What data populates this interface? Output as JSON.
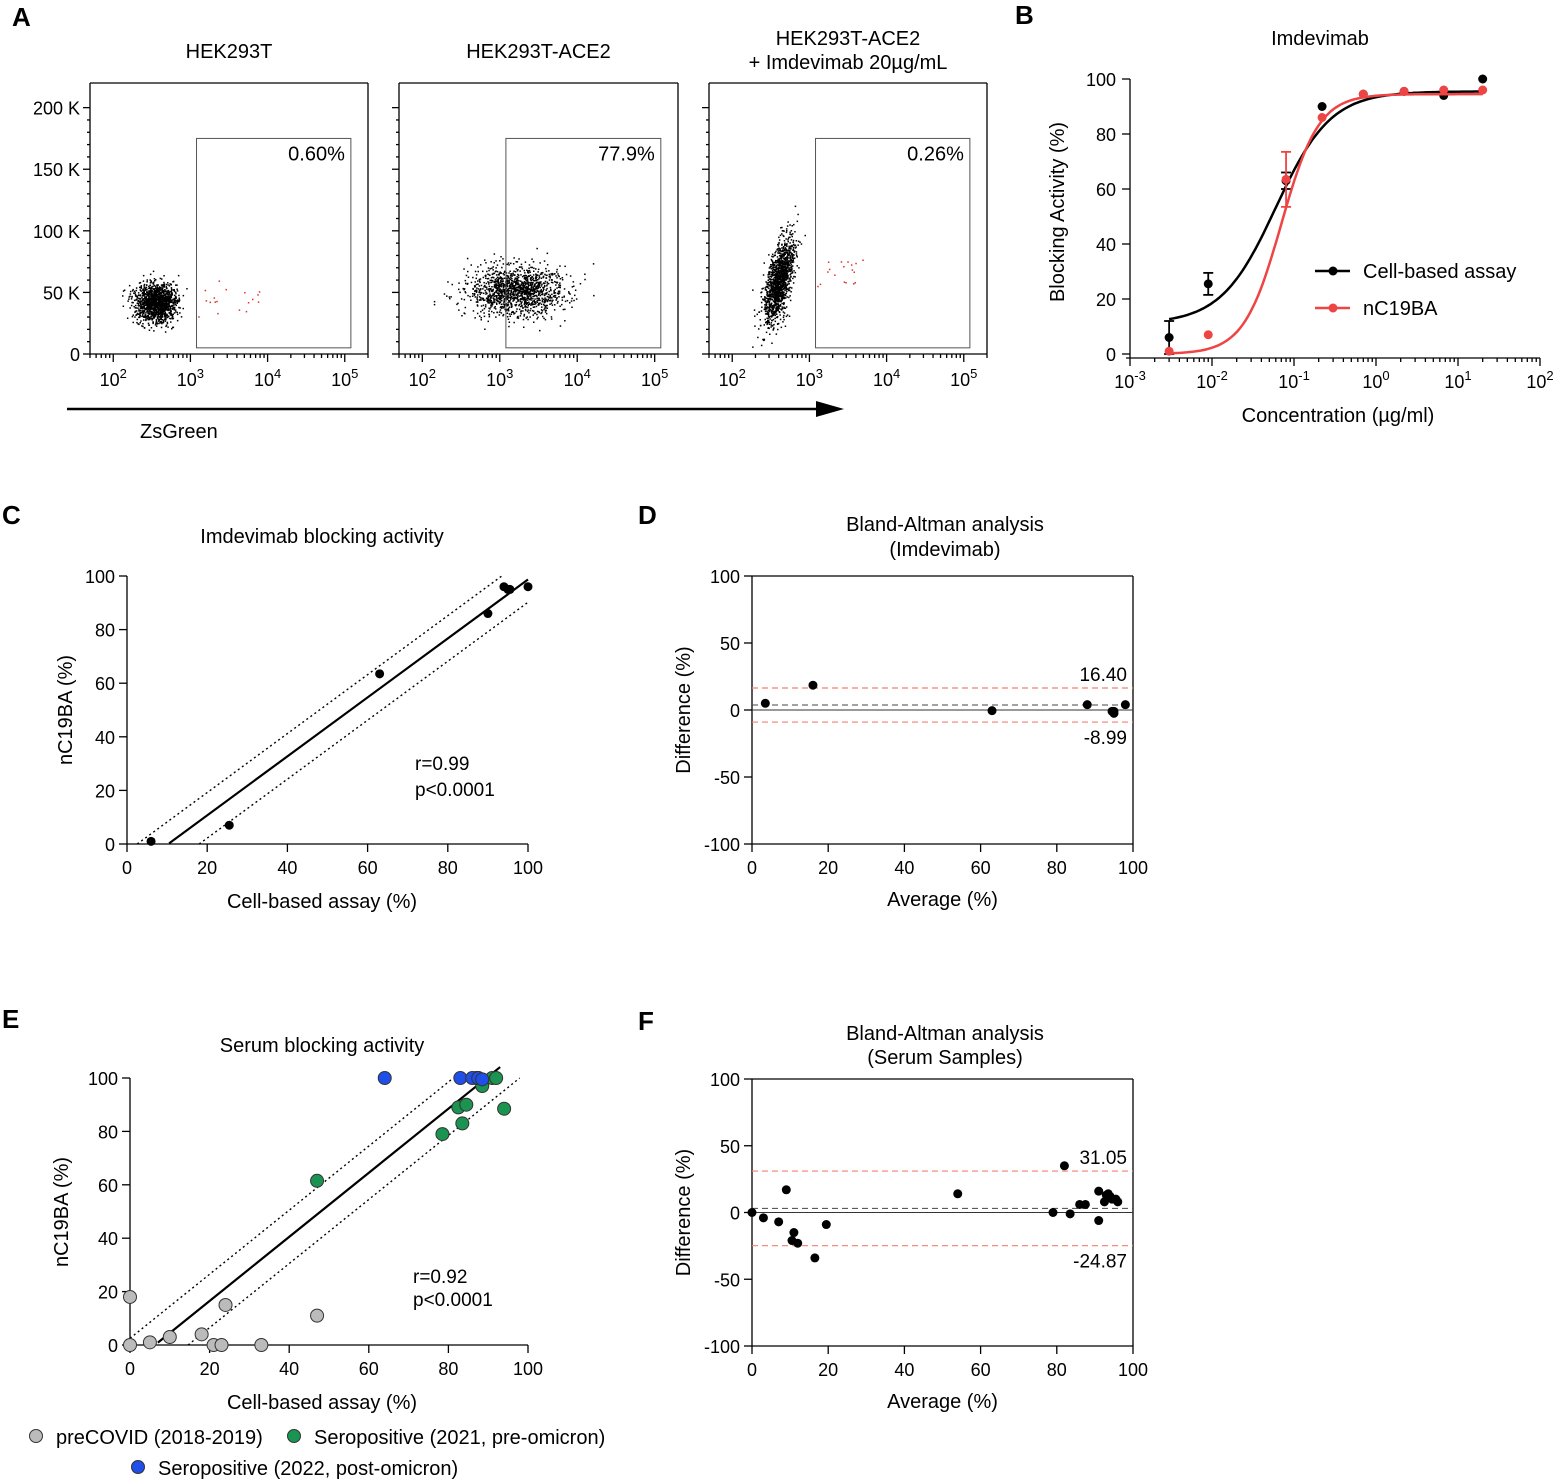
{
  "chart_data": [
    {
      "id": "A",
      "panel_label": "A",
      "type": "scatter",
      "subtype": "flow-cytometry",
      "x_axis_label": "ZsGreen",
      "x_scale": "log",
      "xlim": [
        50,
        200000
      ],
      "ylim": [
        0,
        220000
      ],
      "y_tick_labels": [
        "200 K",
        "150 K",
        "100 K",
        "50 K",
        "0"
      ],
      "y_tick_values": [
        200000,
        150000,
        100000,
        50000,
        0
      ],
      "x_tick_labels": [
        {
          "base": "10",
          "exp": "2",
          "value": 100
        },
        {
          "base": "10",
          "exp": "3",
          "value": 1000
        },
        {
          "base": "10",
          "exp": "4",
          "value": 10000
        },
        {
          "base": "10",
          "exp": "5",
          "value": 100000
        }
      ],
      "gate": {
        "x_min": 1200,
        "x_max": 120000,
        "y_min": 5000,
        "y_max": 175000
      },
      "plots": [
        {
          "title_lines": [
            "HEK293T"
          ],
          "gate_percent": "0.60%",
          "population": {
            "center_log_x": 2.55,
            "center_y": 42000,
            "spread_log_x": 0.14,
            "spread_y": 8000,
            "tilt": 0,
            "count": 1400
          }
        },
        {
          "title_lines": [
            "HEK293T-ACE2"
          ],
          "gate_percent": "77.9%",
          "population": {
            "center_log_x": 3.2,
            "center_y": 52000,
            "spread_log_x": 0.3,
            "spread_y": 10000,
            "tilt": 0,
            "count": 1400
          }
        },
        {
          "title_lines": [
            "HEK293T-ACE2",
            "+ Imdevimab 20µg/mL"
          ],
          "gate_percent": "0.26%",
          "population": {
            "center_log_x": 2.6,
            "center_y": 60000,
            "spread_log_x": 0.1,
            "spread_y": 14000,
            "tilt": 0.75,
            "count": 1400
          }
        }
      ]
    },
    {
      "id": "B",
      "panel_label": "B",
      "type": "line",
      "subtype": "dose-response",
      "title": "Imdevimab",
      "xlabel": "Concentration (µg/ml)",
      "ylabel": "Blocking Activity (%)",
      "x_scale": "log",
      "xlim": [
        0.001,
        100
      ],
      "ylim": [
        0,
        100
      ],
      "y_ticks": [
        "0",
        "20",
        "40",
        "60",
        "80",
        "100"
      ],
      "x_tick_labels": [
        {
          "base": "10",
          "exp": "-3",
          "value": 0.001
        },
        {
          "base": "10",
          "exp": "-2",
          "value": 0.01
        },
        {
          "base": "10",
          "exp": "-1",
          "value": 0.1
        },
        {
          "base": "10",
          "exp": "0",
          "value": 1
        },
        {
          "base": "10",
          "exp": "1",
          "value": 10
        },
        {
          "base": "10",
          "exp": "2",
          "value": 100
        }
      ],
      "series": [
        {
          "name": "Cell-based assay",
          "color": "#000000",
          "x": [
            0.003,
            0.009,
            0.08,
            0.22,
            0.7,
            2.2,
            6.7,
            20
          ],
          "y": [
            6,
            25.5,
            63,
            90,
            94.5,
            95.5,
            94,
            100
          ],
          "err": [
            6,
            4,
            3,
            0,
            0,
            0,
            0,
            0
          ],
          "fit": {
            "bottom": 11,
            "top": 95.5,
            "ec50": 0.06,
            "hill": 1.3
          }
        },
        {
          "name": "nC19BA",
          "color": "#ee4444",
          "x": [
            0.003,
            0.009,
            0.08,
            0.22,
            0.7,
            2.2,
            6.7,
            20
          ],
          "y": [
            1,
            7,
            63.5,
            86,
            94.5,
            95.5,
            96,
            96
          ],
          "err": [
            0,
            0,
            10,
            0,
            0,
            0,
            0,
            0
          ],
          "fit": {
            "bottom": 0,
            "top": 94.5,
            "ec50": 0.07,
            "hill": 1.9
          }
        }
      ],
      "legend": [
        "Cell-based assay",
        "nC19BA"
      ],
      "legend_position": "right"
    },
    {
      "id": "C",
      "panel_label": "C",
      "type": "scatter",
      "title": "Imdevimab blocking activity",
      "xlabel": "Cell-based assay (%)",
      "ylabel": "nC19BA (%)",
      "xlim": [
        0,
        100
      ],
      "ylim": [
        0,
        100
      ],
      "x_ticks": [
        "0",
        "20",
        "40",
        "60",
        "80",
        "100"
      ],
      "y_ticks": [
        "0",
        "20",
        "40",
        "60",
        "80",
        "100"
      ],
      "points": [
        [
          6,
          1
        ],
        [
          25.5,
          7
        ],
        [
          63,
          63.5
        ],
        [
          90,
          86
        ],
        [
          94,
          96
        ],
        [
          95,
          95
        ],
        [
          95.5,
          95
        ],
        [
          100,
          96
        ]
      ],
      "regression": {
        "x_range": [
          10.5,
          100
        ],
        "slope": 1.1,
        "intercept": -11.3,
        "band_offset": 8.5
      },
      "stats": [
        "r=0.99",
        "p<0.0001"
      ]
    },
    {
      "id": "D",
      "panel_label": "D",
      "type": "scatter",
      "subtype": "bland-altman",
      "title_lines": [
        "Bland-Altman analysis",
        "(Imdevimab)"
      ],
      "xlabel": "Average (%)",
      "ylabel": "Difference (%)",
      "xlim": [
        0,
        100
      ],
      "ylim": [
        -100,
        100
      ],
      "x_ticks": [
        "0",
        "20",
        "40",
        "60",
        "80",
        "100"
      ],
      "y_ticks": [
        "-100",
        "-50",
        "0",
        "50",
        "100"
      ],
      "points": [
        [
          3.5,
          5
        ],
        [
          16,
          18.5
        ],
        [
          63,
          -0.5
        ],
        [
          88,
          4
        ],
        [
          94.5,
          -1
        ],
        [
          95,
          -2.5
        ],
        [
          95,
          -1
        ],
        [
          98,
          4
        ]
      ],
      "mean_bias": 3.7,
      "upper_loa": 16.4,
      "lower_loa": -8.99,
      "upper_label": "16.40",
      "lower_label": "-8.99",
      "loa_color": "#f08070"
    },
    {
      "id": "E",
      "panel_label": "E",
      "type": "scatter",
      "title": "Serum blocking activity",
      "xlabel": "Cell-based assay (%)",
      "ylabel": "nC19BA (%)",
      "xlim": [
        0,
        100
      ],
      "ylim": [
        0,
        100
      ],
      "x_ticks": [
        "0",
        "20",
        "40",
        "60",
        "80",
        "100"
      ],
      "y_ticks": [
        "0",
        "20",
        "40",
        "60",
        "80",
        "100"
      ],
      "series": [
        {
          "name": "preCOVID (2018-2019)",
          "color": "#bbbbbb",
          "points": [
            [
              0,
              18
            ],
            [
              0,
              0
            ],
            [
              5,
              1
            ],
            [
              10,
              3
            ],
            [
              18,
              4
            ],
            [
              21,
              0
            ],
            [
              23,
              0
            ],
            [
              24,
              15
            ],
            [
              33,
              0
            ],
            [
              47,
              11
            ]
          ]
        },
        {
          "name": "Seropositive (2021, pre-omicron)",
          "color": "#1a9450",
          "points": [
            [
              47,
              61.5
            ],
            [
              78.5,
              79
            ],
            [
              82.5,
              89
            ],
            [
              83.5,
              83
            ],
            [
              84.5,
              90
            ],
            [
              87,
              100
            ],
            [
              88.5,
              97
            ],
            [
              91,
              100
            ],
            [
              92,
              100
            ],
            [
              94,
              88.5
            ],
            [
              87.5,
              100
            ]
          ]
        },
        {
          "name": "Seropositive (2022, post-omicron)",
          "color": "#1f4fe8",
          "points": [
            [
              64,
              100
            ],
            [
              83,
              100
            ],
            [
              86,
              100
            ],
            [
              87.5,
              100
            ],
            [
              88.5,
              99.5
            ]
          ]
        }
      ],
      "regression": {
        "x_range": [
          7,
          93
        ],
        "slope": 1.2,
        "intercept": -7.5,
        "band_offset": 10
      },
      "stats": [
        "r=0.92",
        "p<0.0001"
      ],
      "legend_position": "bottom"
    },
    {
      "id": "F",
      "panel_label": "F",
      "type": "scatter",
      "subtype": "bland-altman",
      "title_lines": [
        "Bland-Altman analysis",
        "(Serum Samples)"
      ],
      "xlabel": "Average (%)",
      "ylabel": "Difference (%)",
      "xlim": [
        0,
        100
      ],
      "ylim": [
        -100,
        100
      ],
      "x_ticks": [
        "0",
        "20",
        "40",
        "60",
        "80",
        "100"
      ],
      "y_ticks": [
        "-100",
        "-50",
        "0",
        "50",
        "100"
      ],
      "points": [
        [
          0,
          0
        ],
        [
          3,
          -4
        ],
        [
          7,
          -7
        ],
        [
          9,
          17
        ],
        [
          10.5,
          -21
        ],
        [
          11,
          -15
        ],
        [
          12,
          -23
        ],
        [
          16.5,
          -34
        ],
        [
          19.5,
          -9
        ],
        [
          54,
          14
        ],
        [
          79,
          0
        ],
        [
          82,
          35
        ],
        [
          83.5,
          -1
        ],
        [
          86,
          6
        ],
        [
          87.5,
          6
        ],
        [
          91,
          16
        ],
        [
          91,
          -6
        ],
        [
          92.5,
          8
        ],
        [
          93,
          13
        ],
        [
          93.5,
          14
        ],
        [
          94,
          12
        ],
        [
          94.5,
          10
        ],
        [
          95.5,
          10
        ],
        [
          96,
          8
        ]
      ],
      "mean_bias": 3.1,
      "upper_loa": 31.05,
      "lower_loa": -24.87,
      "upper_label": "31.05",
      "lower_label": "-24.87",
      "loa_color": "#f08070"
    }
  ]
}
